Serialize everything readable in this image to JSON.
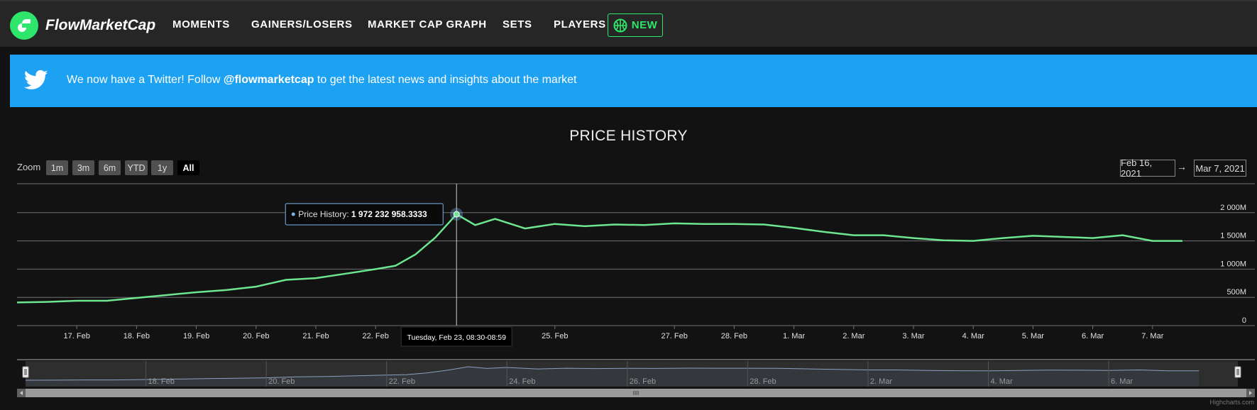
{
  "brand": {
    "name": "FlowMarketCap"
  },
  "nav": {
    "items": [
      "MOMENTS",
      "GAINERS/LOSERS",
      "MARKET CAP GRAPH",
      "SETS",
      "PLAYERS"
    ],
    "new_badge": "NEW"
  },
  "banner": {
    "text_before": "We now have a Twitter! Follow ",
    "handle": "@flowmarketcap",
    "text_after": " to get the latest news and insights about the market"
  },
  "chart": {
    "title": "PRICE HISTORY",
    "zoom_label": "Zoom",
    "zoom_buttons": [
      "1m",
      "3m",
      "6m",
      "YTD",
      "1y",
      "All"
    ],
    "zoom_selected": "All",
    "range_from": "Feb 16, 2021",
    "range_to": "Mar 7, 2021",
    "range_arrow": "→",
    "tooltip_series": "Price History: ",
    "tooltip_value": "1 972 232 958.3333",
    "crosshair_label": "Tuesday, Feb 23, 08:30-08:59",
    "credits": "Highcharts.com",
    "line_color": "#6ee68f",
    "navigator_labels": [
      "18. Feb",
      "20. Feb",
      "22. Feb",
      "24. Feb",
      "26. Feb",
      "28. Feb",
      "2. Mar",
      "4. Mar",
      "6. Mar"
    ]
  },
  "chart_data": {
    "type": "line",
    "title": "PRICE HISTORY",
    "series": [
      {
        "name": "Price History",
        "x": [
          "2021-02-16",
          "2021-02-16T12:00",
          "2021-02-17",
          "2021-02-17T12:00",
          "2021-02-18",
          "2021-02-18T12:00",
          "2021-02-19",
          "2021-02-19T12:00",
          "2021-02-20",
          "2021-02-20T12:00",
          "2021-02-21",
          "2021-02-21T12:00",
          "2021-02-22",
          "2021-02-22T08:00",
          "2021-02-22T16:00",
          "2021-02-23",
          "2021-02-23T08:30",
          "2021-02-23T16:00",
          "2021-02-24",
          "2021-02-24T12:00",
          "2021-02-25",
          "2021-02-25T12:00",
          "2021-02-26",
          "2021-02-26T12:00",
          "2021-02-27",
          "2021-02-27T12:00",
          "2021-02-28",
          "2021-02-28T12:00",
          "2021-03-01",
          "2021-03-01T12:00",
          "2021-03-02",
          "2021-03-02T12:00",
          "2021-03-03",
          "2021-03-03T12:00",
          "2021-03-04",
          "2021-03-04T12:00",
          "2021-03-05",
          "2021-03-05T12:00",
          "2021-03-06",
          "2021-03-06T12:00",
          "2021-03-07",
          "2021-03-07T12:00"
        ],
        "values": [
          410,
          420,
          440,
          440,
          490,
          540,
          590,
          630,
          690,
          810,
          840,
          920,
          1000,
          1060,
          1260,
          1560,
          1972,
          1780,
          1890,
          1720,
          1800,
          1760,
          1790,
          1780,
          1810,
          1800,
          1800,
          1790,
          1730,
          1660,
          1600,
          1600,
          1550,
          1510,
          1500,
          1550,
          1590,
          1570,
          1550,
          1600,
          1500,
          1500
        ]
      }
    ],
    "yticks": [
      "0",
      "500M",
      "1 000M",
      "1 500M",
      "2 000M"
    ],
    "xticks": [
      "17. Feb",
      "18. Feb",
      "19. Feb",
      "20. Feb",
      "21. Feb",
      "22. Feb",
      "25. Feb",
      "27. Feb",
      "28. Feb",
      "1. Mar",
      "2. Mar",
      "3. Mar",
      "4. Mar",
      "5. Mar",
      "6. Mar",
      "7. Mar"
    ],
    "ylim": [
      0,
      2500
    ],
    "legend": "none",
    "grid": true
  }
}
